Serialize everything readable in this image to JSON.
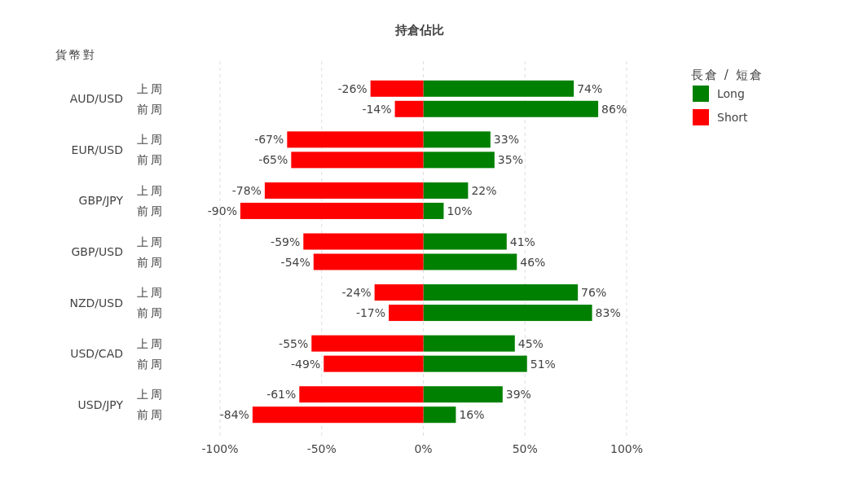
{
  "chart_data": {
    "type": "bar",
    "orientation": "horizontal",
    "stacked": true,
    "title": "持倉佔比",
    "ylabel": "貨幣對",
    "legend_title": "長倉 / 短倉",
    "legend": "top right",
    "categories": [
      "上周",
      "前周",
      "上周",
      "前周",
      "上周",
      "前周",
      "上周",
      "前周",
      "上周",
      "前周",
      "上周",
      "前周",
      "上周",
      "前周"
    ],
    "annotations": [
      "AUD/USD",
      "EUR/USD",
      "GBP/JPY",
      "GBP/USD",
      "NZD/USD",
      "USD/CAD",
      "USD/JPY"
    ],
    "series": [
      {
        "name": "Long",
        "color": "#008000",
        "values": [
          74,
          86,
          33,
          35,
          22,
          10,
          41,
          46,
          76,
          83,
          45,
          51,
          39,
          16
        ],
        "value_labels": [
          "74%",
          "86%",
          "33%",
          "35%",
          "22%",
          "10%",
          "41%",
          "46%",
          "76%",
          "83%",
          "45%",
          "51%",
          "39%",
          "16%"
        ]
      },
      {
        "name": "Short",
        "color": "#ff0000",
        "values": [
          -26,
          -14,
          -67,
          -65,
          -78,
          -90,
          -59,
          -54,
          -24,
          -17,
          -55,
          -49,
          -61,
          -84
        ],
        "value_labels": [
          "-26%",
          "-14%",
          "-67%",
          "-65%",
          "-78%",
          "-90%",
          "-59%",
          "-54%",
          "-24%",
          "-17%",
          "-55%",
          "-49%",
          "-61%",
          "-84%"
        ]
      }
    ],
    "xlim": [
      -100,
      100
    ],
    "xticks": [
      {
        "value": -100,
        "label": "-100%"
      },
      {
        "value": -50,
        "label": "-50%"
      },
      {
        "value": 0,
        "label": "0%"
      },
      {
        "value": 50,
        "label": "50%"
      },
      {
        "value": 100,
        "label": "100%"
      }
    ],
    "grid": "x",
    "line_style": "dashed"
  }
}
